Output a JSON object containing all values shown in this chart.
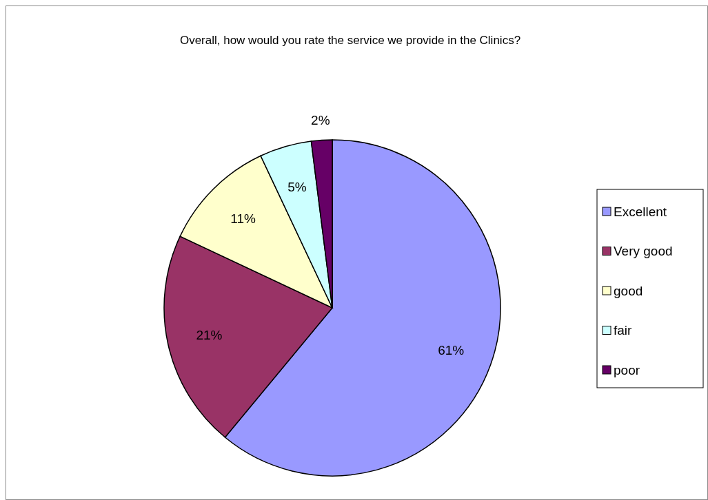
{
  "chart_data": {
    "type": "pie",
    "title": "Overall, how would you rate the service we provide in the Clinics?",
    "categories": [
      "Excellent",
      "Very good",
      "good",
      "fair",
      "poor"
    ],
    "values": [
      61,
      21,
      11,
      5,
      2
    ],
    "colors": [
      "#9999ff",
      "#993366",
      "#ffffcc",
      "#ccffff",
      "#660066"
    ],
    "value_labels": [
      "61%",
      "21%",
      "11%",
      "5%",
      "2%"
    ],
    "legend": "right"
  }
}
